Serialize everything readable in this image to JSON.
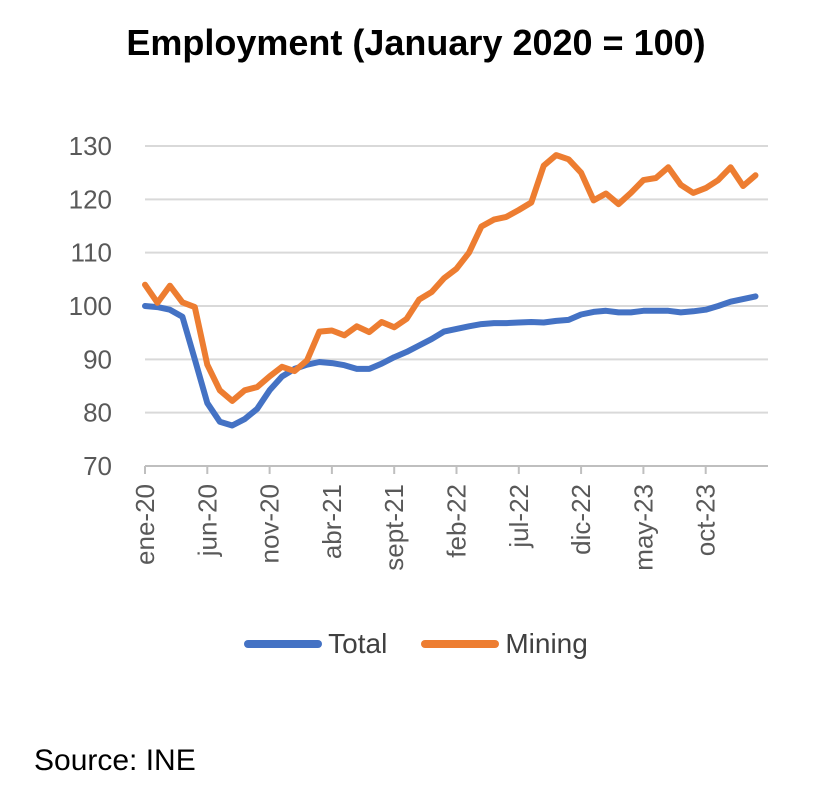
{
  "chart_data": {
    "type": "line",
    "title": "Employment (January 2020 = 100)",
    "xlabel": "",
    "ylabel": "",
    "ylim": [
      70,
      130
    ],
    "yticks": [
      70,
      80,
      90,
      100,
      110,
      120,
      130
    ],
    "grid": true,
    "legend_position": "bottom",
    "x_tick_labels": [
      "ene-20",
      "jun-20",
      "nov-20",
      "abr-21",
      "sept-21",
      "feb-22",
      "jul-22",
      "dic-22",
      "may-23",
      "oct-23"
    ],
    "x_tick_positions": [
      0,
      5,
      10,
      15,
      20,
      25,
      30,
      35,
      40,
      45
    ],
    "num_points": 50,
    "series": [
      {
        "name": "Total",
        "color": "#4472C4",
        "values": [
          100,
          99.8,
          99.3,
          98,
          90,
          81.8,
          78.3,
          77.6,
          78.8,
          80.7,
          84.2,
          86.8,
          88.2,
          89,
          89.5,
          89.3,
          88.9,
          88.2,
          88.2,
          89.2,
          90.4,
          91.4,
          92.6,
          93.8,
          95.2,
          95.7,
          96.2,
          96.6,
          96.8,
          96.8,
          96.9,
          97,
          96.9,
          97.2,
          97.4,
          98.4,
          98.9,
          99.1,
          98.8,
          98.8,
          99.1,
          99.1,
          99.1,
          98.8,
          99,
          99.3,
          100,
          100.8,
          101.3,
          101.8
        ]
      },
      {
        "name": "Mining",
        "color": "#ED7D31",
        "values": [
          104,
          100.6,
          103.8,
          100.7,
          99.8,
          89,
          84.2,
          82.2,
          84.2,
          84.8,
          86.8,
          88.6,
          87.8,
          89.8,
          95.2,
          95.4,
          94.5,
          96.2,
          95.1,
          97,
          96,
          97.6,
          101.2,
          102.6,
          105.2,
          107,
          110,
          114.9,
          116.2,
          116.7,
          118,
          119.4,
          126.3,
          128.3,
          127.5,
          125,
          119.8,
          121.1,
          119.1,
          121.2,
          123.6,
          124,
          126,
          122.7,
          121.2,
          122.1,
          123.6,
          126,
          122.5,
          124.5
        ]
      }
    ]
  },
  "source": "Source: INE"
}
